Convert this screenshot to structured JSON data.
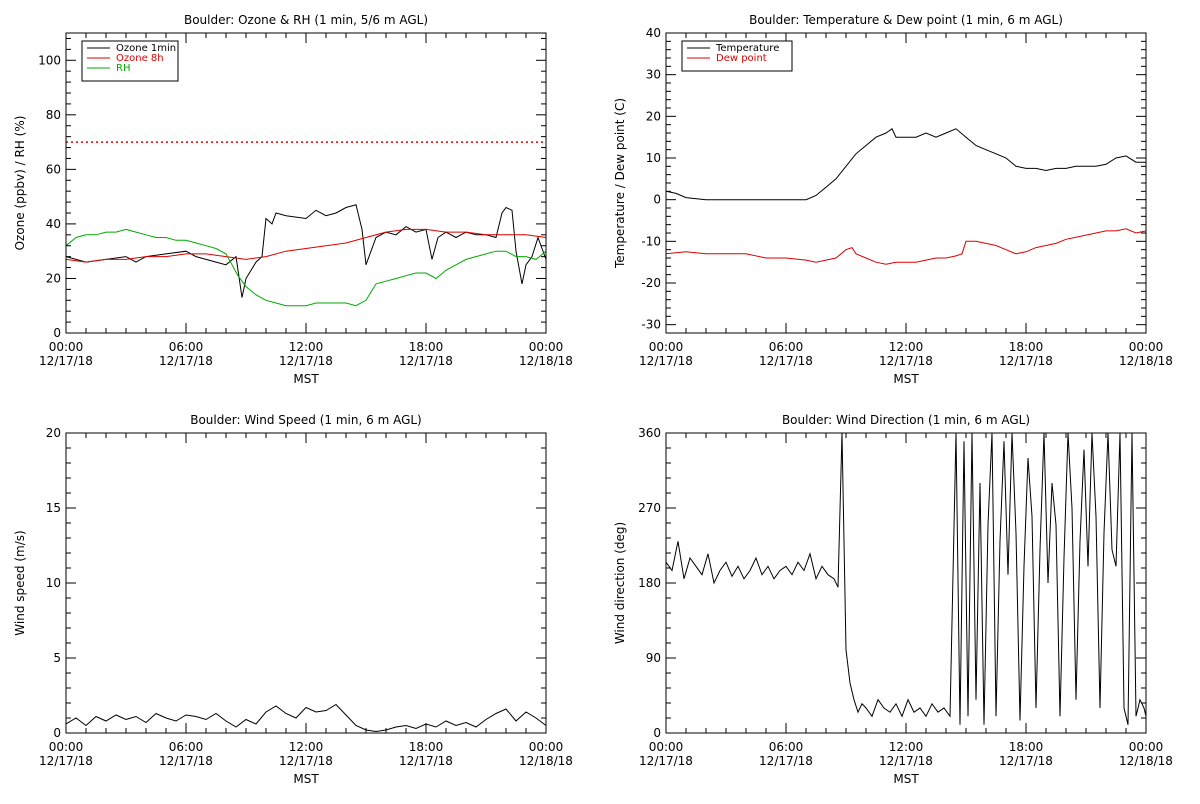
{
  "chart_data": [
    {
      "type": "line",
      "title": "Boulder: Ozone & RH (1 min, 5/6 m AGL)",
      "ylabel": "Ozone (ppbv) / RH (%)",
      "xlabel": "MST",
      "xticks": [
        "00:00\n12/17/18",
        "06:00\n12/17/18",
        "12:00\n12/17/18",
        "18:00\n12/17/18",
        "00:00\n12/18/18"
      ],
      "x_range_hours": [
        0,
        24
      ],
      "ylim": [
        0,
        110
      ],
      "yticks": [
        0,
        20,
        40,
        60,
        80,
        100
      ],
      "legend": {
        "position": "top-left",
        "entries": [
          "Ozone 1min",
          "Ozone 8h",
          "RH"
        ]
      },
      "reference_line": {
        "y": 70,
        "color": "#dd0000",
        "style": "dotted"
      },
      "series": [
        {
          "name": "Ozone 1min",
          "color": "#000000",
          "x": [
            0,
            0.5,
            1,
            2,
            3,
            3.5,
            4,
            5,
            6,
            6.5,
            7,
            7.5,
            8,
            8.5,
            8.8,
            9,
            9.5,
            9.8,
            10,
            10.3,
            10.5,
            11,
            12,
            12.5,
            13,
            13.5,
            14,
            14.5,
            14.8,
            15,
            15.5,
            16,
            16.5,
            17,
            17.5,
            18,
            18.3,
            18.6,
            19,
            19.5,
            20,
            20.5,
            21,
            21.5,
            21.8,
            22,
            22.3,
            22.5,
            22.8,
            23,
            23.3,
            23.6,
            24
          ],
          "y": [
            28,
            27,
            26,
            27,
            28,
            26,
            28,
            29,
            30,
            28,
            27,
            26,
            25,
            28,
            13,
            20,
            26,
            28,
            42,
            40,
            44,
            43,
            42,
            45,
            43,
            44,
            46,
            47,
            38,
            25,
            35,
            37,
            36,
            39,
            37,
            38,
            27,
            35,
            37,
            35,
            37,
            36,
            36,
            35,
            44,
            46,
            45,
            30,
            18,
            25,
            28,
            35,
            27
          ]
        },
        {
          "name": "Ozone 8h",
          "color": "#dd0000",
          "x": [
            0,
            1,
            2,
            3,
            4,
            5,
            6,
            7,
            8,
            9,
            10,
            11,
            12,
            13,
            14,
            15,
            16,
            17,
            18,
            19,
            20,
            21,
            22,
            23,
            24
          ],
          "y": [
            27,
            26,
            27,
            27,
            28,
            28,
            29,
            29,
            28,
            27,
            28,
            30,
            31,
            32,
            33,
            35,
            37,
            38,
            38,
            37,
            37,
            36,
            36,
            36,
            35
          ]
        },
        {
          "name": "RH",
          "color": "#00aa00",
          "x": [
            0,
            0.5,
            1,
            1.5,
            2,
            2.5,
            3,
            3.5,
            4,
            4.5,
            5,
            5.5,
            6,
            6.5,
            7,
            7.5,
            8,
            8.3,
            8.6,
            9,
            9.5,
            10,
            10.5,
            11,
            11.5,
            12,
            12.5,
            13,
            13.5,
            14,
            14.5,
            15,
            15.5,
            16,
            16.5,
            17,
            17.5,
            18,
            18.5,
            19,
            19.5,
            20,
            20.5,
            21,
            21.5,
            22,
            22.5,
            23,
            23.5,
            24
          ],
          "y": [
            32,
            35,
            36,
            36,
            37,
            37,
            38,
            37,
            36,
            35,
            35,
            34,
            34,
            33,
            32,
            31,
            29,
            25,
            21,
            17,
            14,
            12,
            11,
            10,
            10,
            10,
            11,
            11,
            11,
            11,
            10,
            12,
            18,
            19,
            20,
            21,
            22,
            22,
            20,
            23,
            25,
            27,
            28,
            29,
            30,
            30,
            28,
            28,
            27,
            30
          ]
        }
      ]
    },
    {
      "type": "line",
      "title": "Boulder: Temperature & Dew point (1 min, 6 m AGL)",
      "ylabel": "Temperature / Dew point (C)",
      "xlabel": "MST",
      "xticks": [
        "00:00\n12/17/18",
        "06:00\n12/17/18",
        "12:00\n12/17/18",
        "18:00\n12/17/18",
        "00:00\n12/18/18"
      ],
      "x_range_hours": [
        0,
        24
      ],
      "ylim": [
        -32,
        40
      ],
      "yticks": [
        -30,
        -20,
        -10,
        0,
        10,
        20,
        30,
        40
      ],
      "legend": {
        "position": "top-left",
        "entries": [
          "Temperature",
          "Dew point"
        ]
      },
      "series": [
        {
          "name": "Temperature",
          "color": "#000000",
          "x": [
            0,
            0.5,
            1,
            2,
            3,
            4,
            5,
            6,
            7,
            7.5,
            8,
            8.5,
            9,
            9.5,
            10,
            10.5,
            11,
            11.3,
            11.5,
            12,
            12.5,
            13,
            13.5,
            14,
            14.5,
            15,
            15.5,
            16,
            16.5,
            17,
            17.5,
            18,
            18.5,
            19,
            19.5,
            20,
            20.5,
            21,
            21.5,
            22,
            22.5,
            23,
            23.5,
            24
          ],
          "y": [
            2,
            1.5,
            0.5,
            0,
            0,
            0,
            0,
            0,
            0,
            1,
            3,
            5,
            8,
            11,
            13,
            15,
            16,
            17,
            15,
            15,
            15,
            16,
            15,
            16,
            17,
            15,
            13,
            12,
            11,
            10,
            8,
            7.5,
            7.5,
            7,
            7.5,
            7.5,
            8,
            8,
            8,
            8.5,
            10,
            10.5,
            9,
            9
          ]
        },
        {
          "name": "Dew point",
          "color": "#dd0000",
          "x": [
            0,
            1,
            2,
            3,
            4,
            5,
            6,
            7,
            7.5,
            8,
            8.5,
            9,
            9.3,
            9.5,
            10,
            10.5,
            11,
            11.5,
            12,
            12.5,
            13,
            13.5,
            14,
            14.5,
            14.8,
            15,
            15.5,
            16,
            16.5,
            17,
            17.5,
            18,
            18.5,
            19,
            19.5,
            20,
            20.5,
            21,
            21.5,
            22,
            22.5,
            23,
            23.5,
            24
          ],
          "y": [
            -13,
            -12.5,
            -13,
            -13,
            -13,
            -14,
            -14,
            -14.5,
            -15,
            -14.5,
            -14,
            -12,
            -11.5,
            -13,
            -14,
            -15,
            -15.5,
            -15,
            -15,
            -15,
            -14.5,
            -14,
            -14,
            -13.5,
            -13,
            -10,
            -10,
            -10.5,
            -11,
            -12,
            -13,
            -12.5,
            -11.5,
            -11,
            -10.5,
            -9.5,
            -9,
            -8.5,
            -8,
            -7.5,
            -7.5,
            -7,
            -8,
            -7.5
          ]
        }
      ]
    },
    {
      "type": "line",
      "title": "Boulder: Wind Speed (1 min, 6 m AGL)",
      "ylabel": "Wind speed (m/s)",
      "xlabel": "MST",
      "xticks": [
        "00:00\n12/17/18",
        "06:00\n12/17/18",
        "12:00\n12/17/18",
        "18:00\n12/17/18",
        "00:00\n12/18/18"
      ],
      "x_range_hours": [
        0,
        24
      ],
      "ylim": [
        0,
        20
      ],
      "yticks": [
        0,
        5,
        10,
        15,
        20
      ],
      "series": [
        {
          "name": "Wind speed",
          "color": "#000000",
          "x": [
            0,
            0.5,
            1,
            1.5,
            2,
            2.5,
            3,
            3.5,
            4,
            4.5,
            5,
            5.5,
            6,
            6.5,
            7,
            7.5,
            8,
            8.5,
            9,
            9.5,
            10,
            10.5,
            11,
            11.5,
            12,
            12.5,
            13,
            13.5,
            14,
            14.5,
            15,
            15.5,
            16,
            16.5,
            17,
            17.5,
            18,
            18.5,
            19,
            19.5,
            20,
            20.5,
            21,
            21.5,
            22,
            22.5,
            23,
            23.5,
            24
          ],
          "y": [
            0.6,
            1.0,
            0.5,
            1.1,
            0.8,
            1.2,
            0.9,
            1.1,
            0.7,
            1.3,
            1.0,
            0.8,
            1.2,
            1.1,
            0.9,
            1.3,
            0.8,
            0.4,
            0.9,
            0.6,
            1.4,
            1.8,
            1.3,
            1.0,
            1.7,
            1.4,
            1.5,
            1.9,
            1.2,
            0.5,
            0.2,
            0.1,
            0.2,
            0.4,
            0.5,
            0.3,
            0.6,
            0.4,
            0.8,
            0.5,
            0.7,
            0.4,
            0.9,
            1.3,
            1.6,
            0.8,
            1.4,
            1.0,
            0.5
          ]
        }
      ]
    },
    {
      "type": "line",
      "title": "Boulder: Wind Direction (1 min, 6 m AGL)",
      "ylabel": "Wind direction (deg)",
      "xlabel": "MST",
      "xticks": [
        "00:00\n12/17/18",
        "06:00\n12/17/18",
        "12:00\n12/17/18",
        "18:00\n12/17/18",
        "00:00\n12/18/18"
      ],
      "x_range_hours": [
        0,
        24
      ],
      "ylim": [
        0,
        360
      ],
      "yticks": [
        0,
        90,
        180,
        270,
        360
      ],
      "series": [
        {
          "name": "Wind direction",
          "color": "#000000",
          "x": [
            0,
            0.3,
            0.6,
            0.9,
            1.2,
            1.5,
            1.8,
            2.1,
            2.4,
            2.7,
            3,
            3.3,
            3.6,
            3.9,
            4.2,
            4.5,
            4.8,
            5.1,
            5.4,
            5.7,
            6,
            6.3,
            6.6,
            6.9,
            7.2,
            7.5,
            7.8,
            8.1,
            8.4,
            8.6,
            8.8,
            9,
            9.2,
            9.4,
            9.6,
            9.8,
            10,
            10.3,
            10.6,
            10.9,
            11.2,
            11.5,
            11.8,
            12.1,
            12.4,
            12.7,
            13,
            13.3,
            13.6,
            13.9,
            14.2,
            14.5,
            14.7,
            14.9,
            15.1,
            15.3,
            15.5,
            15.7,
            15.9,
            16.1,
            16.3,
            16.5,
            16.7,
            16.9,
            17.1,
            17.3,
            17.5,
            17.7,
            17.9,
            18.1,
            18.3,
            18.5,
            18.7,
            18.9,
            19.1,
            19.3,
            19.5,
            19.7,
            19.9,
            20.1,
            20.3,
            20.5,
            20.7,
            20.9,
            21.1,
            21.3,
            21.5,
            21.7,
            21.9,
            22.1,
            22.3,
            22.5,
            22.7,
            22.9,
            23.1,
            23.3,
            23.5,
            23.7,
            23.9,
            24
          ],
          "y": [
            205,
            195,
            230,
            185,
            210,
            200,
            190,
            215,
            180,
            195,
            205,
            188,
            200,
            185,
            195,
            210,
            190,
            200,
            185,
            195,
            200,
            190,
            205,
            195,
            215,
            185,
            200,
            190,
            185,
            175,
            360,
            100,
            60,
            40,
            25,
            35,
            30,
            20,
            40,
            30,
            25,
            35,
            20,
            40,
            25,
            30,
            20,
            35,
            25,
            30,
            20,
            360,
            10,
            350,
            20,
            360,
            40,
            300,
            10,
            250,
            360,
            20,
            230,
            350,
            190,
            360,
            240,
            15,
            200,
            330,
            260,
            30,
            220,
            360,
            180,
            300,
            250,
            20,
            210,
            360,
            270,
            40,
            230,
            340,
            200,
            360,
            260,
            30,
            240,
            360,
            220,
            200,
            360,
            30,
            10,
            360,
            20,
            40,
            30,
            20
          ]
        }
      ]
    }
  ]
}
